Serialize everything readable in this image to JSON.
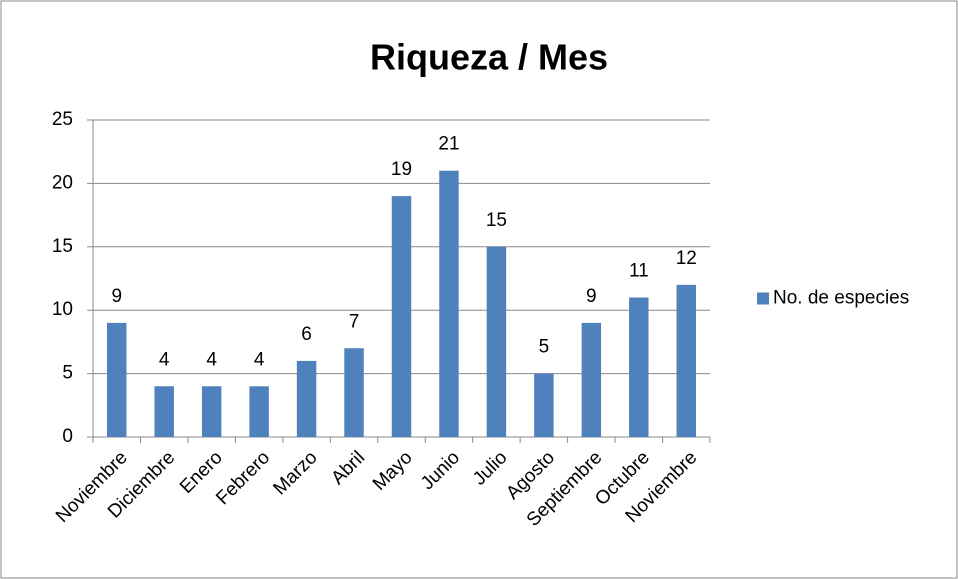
{
  "chart_data": {
    "type": "bar",
    "title": "Riqueza / Mes",
    "categories": [
      "Noviembre",
      "Diciembre",
      "Enero",
      "Febrero",
      "Marzo",
      "Abril",
      "Mayo",
      "Junio",
      "Julio",
      "Agosto",
      "Septiembre",
      "Octubre",
      "Noviembre"
    ],
    "series": [
      {
        "name": "No. de especies",
        "color": "#4f81bd",
        "values": [
          9,
          4,
          4,
          4,
          6,
          7,
          19,
          21,
          15,
          5,
          9,
          11,
          12
        ]
      }
    ],
    "ylim": [
      0,
      25
    ],
    "yticks": [
      0,
      5,
      10,
      15,
      20,
      25
    ],
    "grid": true,
    "legend": "right"
  }
}
